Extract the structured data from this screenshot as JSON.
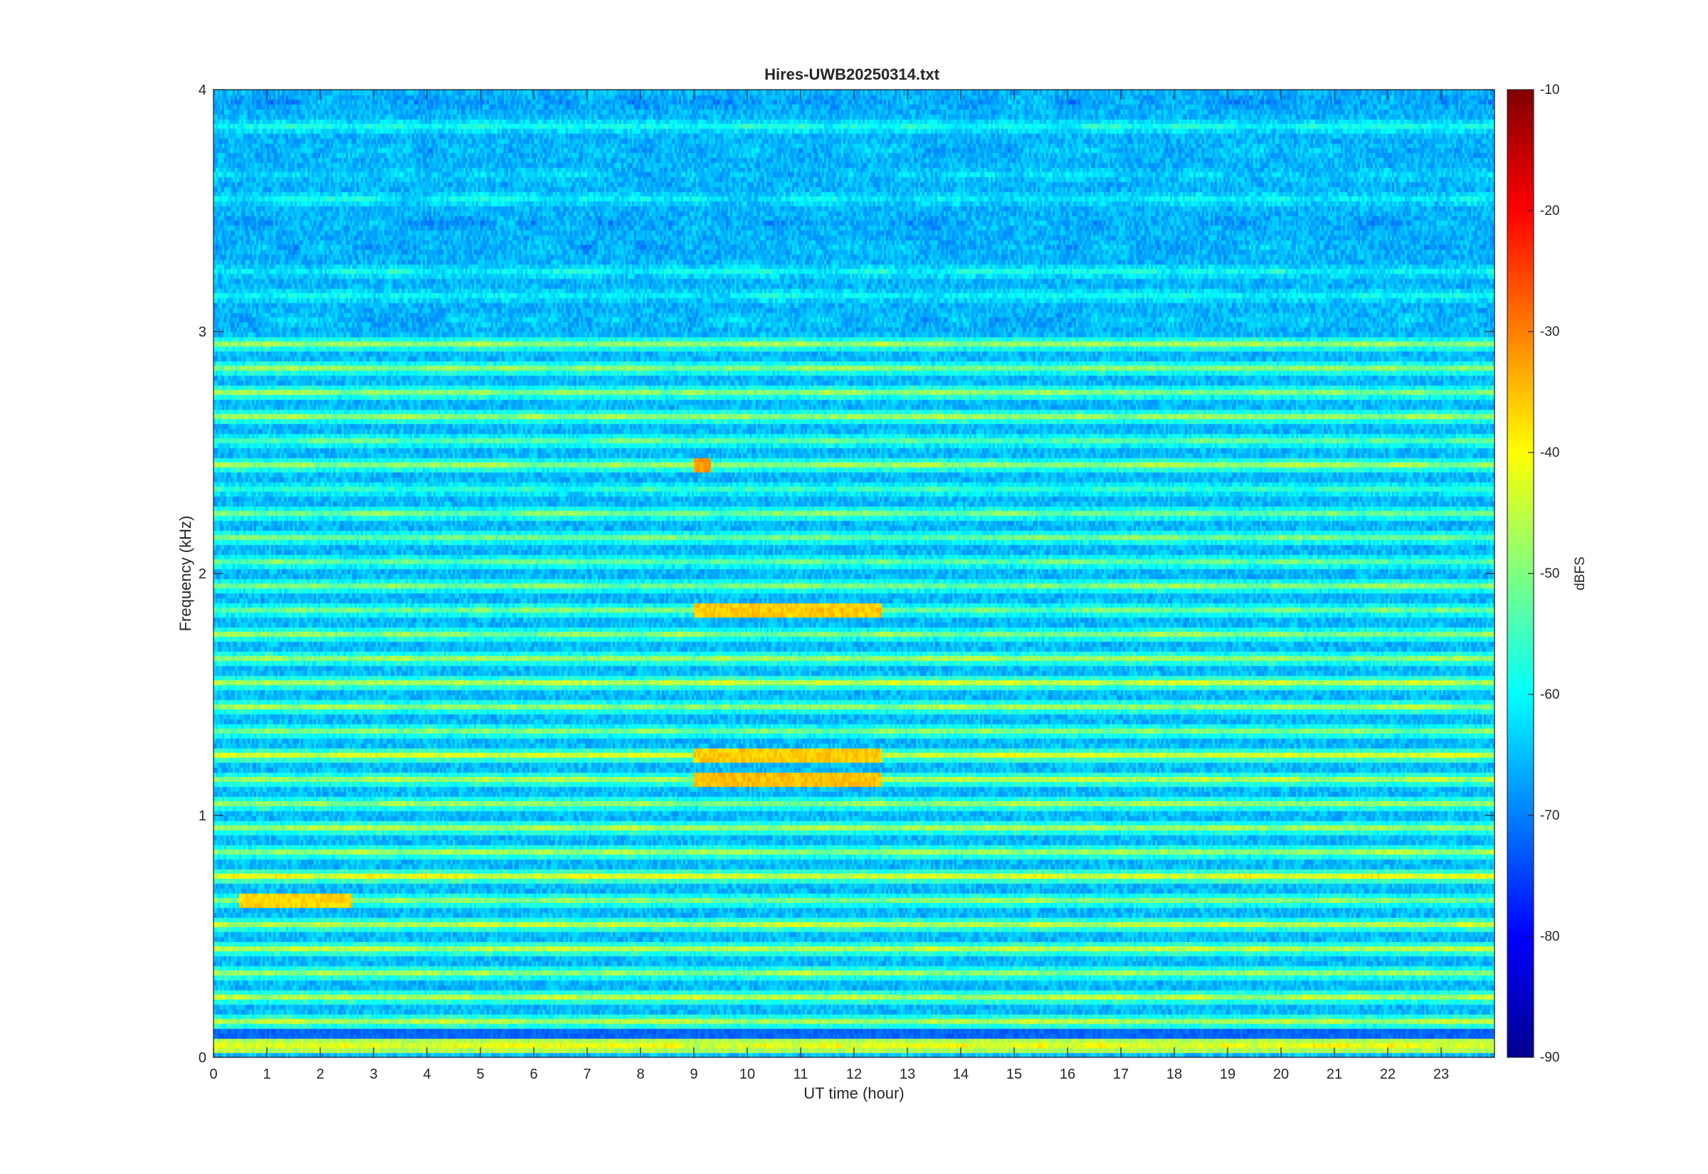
{
  "chart_data": {
    "type": "heatmap",
    "title": "Hires-UWB20250314.txt",
    "xlabel": "UT time (hour)",
    "ylabel": "Frequency (kHz)",
    "xlim": [
      0,
      24
    ],
    "ylim": [
      0,
      4
    ],
    "x_ticks": [
      "0",
      "1",
      "2",
      "3",
      "4",
      "5",
      "6",
      "7",
      "8",
      "9",
      "10",
      "11",
      "12",
      "13",
      "14",
      "15",
      "16",
      "17",
      "18",
      "19",
      "20",
      "21",
      "22",
      "23"
    ],
    "y_ticks": [
      "0",
      "1",
      "2",
      "3",
      "4"
    ],
    "colorbar": {
      "label": "dBFS",
      "colormap": "jet",
      "clim": [
        -90,
        -10
      ],
      "ticks": [
        "-90",
        "-80",
        "-70",
        "-60",
        "-50",
        "-40",
        "-30",
        "-20",
        "-10"
      ]
    },
    "band_spacing_khz": 0.1,
    "levels_dbfs": {
      "low_frequency_bands_0_to_2_khz": [
        -52,
        -42
      ],
      "mid_frequency_bands_2_to_3_khz": [
        -58,
        -48
      ],
      "high_frequency_bands_3_to_4_khz": [
        -68,
        -58
      ],
      "strongest_lines_0_to_2_5_khz": [
        -38,
        -33
      ]
    },
    "notable_features": [
      {
        "freq_khz": 1.15,
        "time_hours": [
          9,
          12.5
        ],
        "level_dbfs": -35
      },
      {
        "freq_khz": 1.25,
        "time_hours": [
          9,
          12.5
        ],
        "level_dbfs": -36
      },
      {
        "freq_khz": 1.85,
        "time_hours": [
          9,
          12.5
        ],
        "level_dbfs": -36
      },
      {
        "freq_khz": 2.45,
        "time_hours": [
          9,
          9.3
        ],
        "level_dbfs": -32
      },
      {
        "freq_khz": 0.65,
        "time_hours": [
          0.5,
          2.6
        ],
        "level_dbfs": -37
      }
    ]
  }
}
